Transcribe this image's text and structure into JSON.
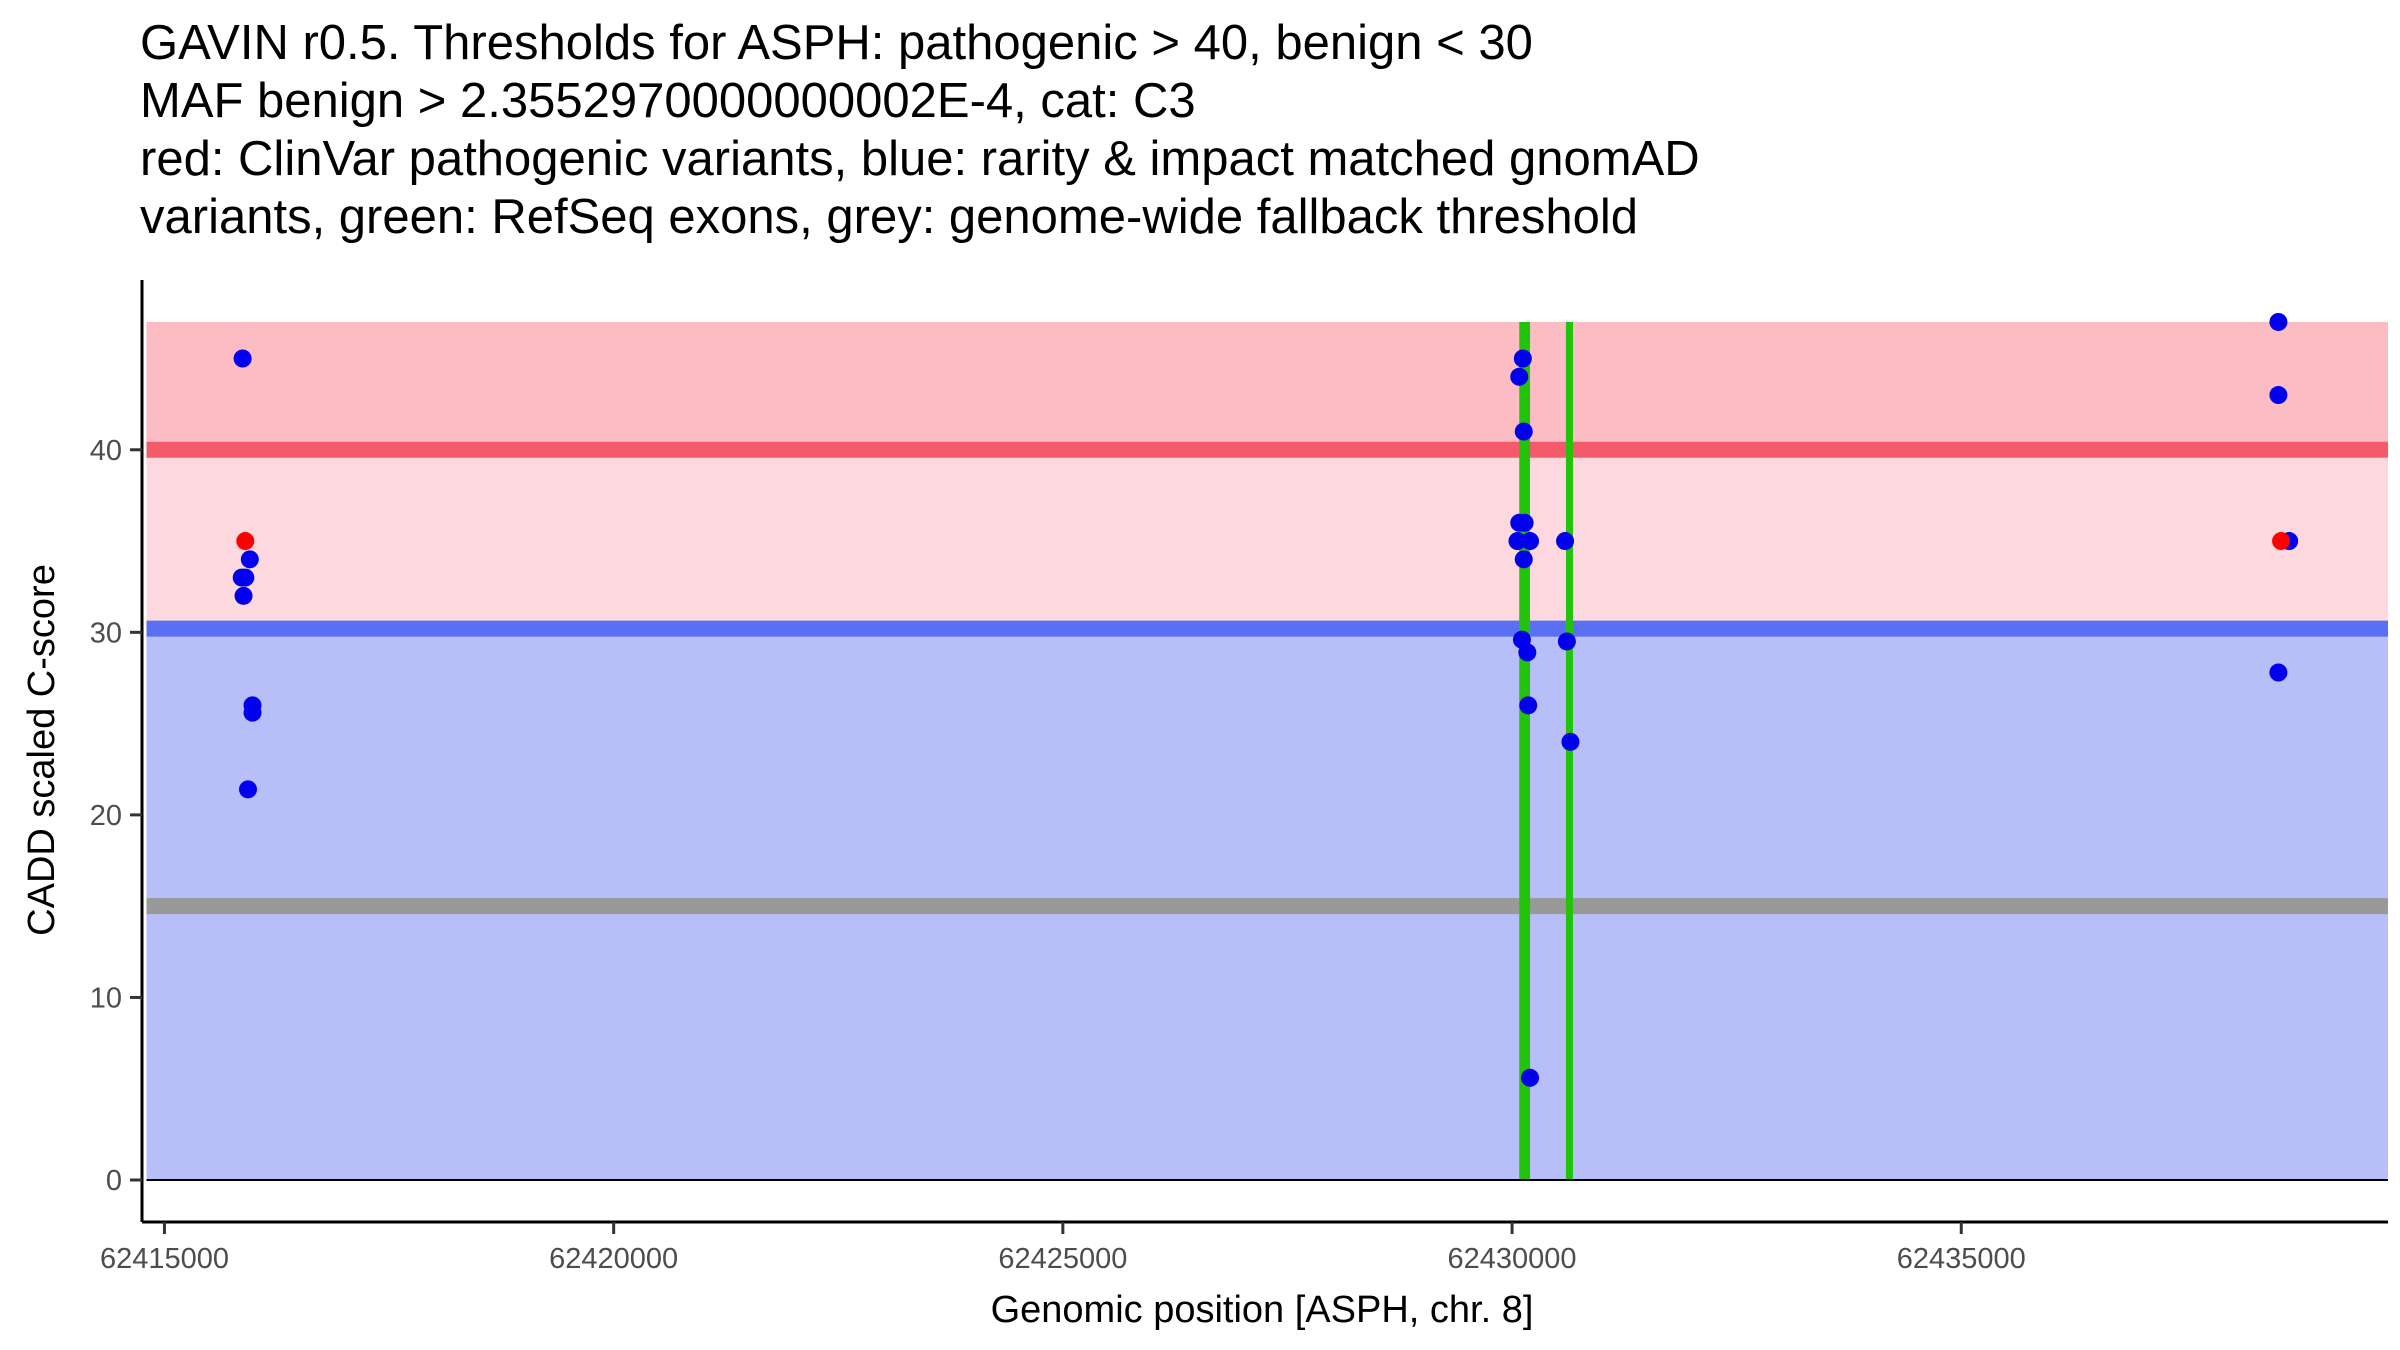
{
  "title_lines": [
    "GAVIN r0.5. Thresholds for ASPH: pathogenic > 40, benign < 30",
    "MAF benign > 2.3552970000000002E-4, cat: C3",
    "red: ClinVar pathogenic variants, blue: rarity & impact matched gnomAD",
    "variants, green: RefSeq exons, grey: genome-wide fallback threshold"
  ],
  "chart_data": {
    "type": "scatter",
    "xlabel": "Genomic position [ASPH, chr. 8]",
    "ylabel": "CADD scaled C-score",
    "xlim": [
      62414750,
      62439750
    ],
    "ylim": [
      -2.3,
      49.3
    ],
    "x_ticks": [
      62415000,
      62420000,
      62425000,
      62430000,
      62435000
    ],
    "y_ticks": [
      0,
      10,
      20,
      30,
      40
    ],
    "colors": {
      "pathogenic_region": "#fcbcc4",
      "vus_region": "#fdd8de",
      "benign_region": "#b8bef7",
      "pathogenic_line": "#f35a6a",
      "benign_line": "#5a70f3",
      "fallback_line": "#999999",
      "exon": "#22c40b",
      "pathogenic_point": "#ff0000",
      "gnomad_point": "#0000ee"
    },
    "regions": [
      {
        "name": "pathogenic",
        "y_from": 40,
        "y_to": 47,
        "x_from": 62414800,
        "x_to": 62439750
      },
      {
        "name": "vus",
        "y_from": 30,
        "y_to": 40,
        "x_from": 62414800,
        "x_to": 62439750
      },
      {
        "name": "benign",
        "y_from": 0,
        "y_to": 30,
        "x_from": 62414800,
        "x_to": 62439750
      }
    ],
    "thresholds": [
      {
        "name": "pathogenic",
        "y": 40
      },
      {
        "name": "benign",
        "y": 30.2
      },
      {
        "name": "fallback",
        "y": 15
      }
    ],
    "exons": [
      {
        "start": 62430080,
        "end": 62430200,
        "y_from": 0,
        "y_to": 47
      },
      {
        "start": 62430600,
        "end": 62430660,
        "y_from": 0,
        "y_to": 47
      }
    ],
    "series": [
      {
        "name": "gnomAD",
        "points": [
          [
            62415870,
            45
          ],
          [
            62415860,
            33
          ],
          [
            62415900,
            33
          ],
          [
            62415880,
            32
          ],
          [
            62415950,
            34
          ],
          [
            62415980,
            26
          ],
          [
            62415980,
            25.6
          ],
          [
            62415930,
            21.4
          ],
          [
            62430120,
            45
          ],
          [
            62430080,
            44
          ],
          [
            62430130,
            41
          ],
          [
            62430080,
            36
          ],
          [
            62430140,
            36
          ],
          [
            62430060,
            35
          ],
          [
            62430200,
            35
          ],
          [
            62430130,
            34
          ],
          [
            62430110,
            29.6
          ],
          [
            62430170,
            28.9
          ],
          [
            62430180,
            26
          ],
          [
            62430200,
            5.6
          ],
          [
            62430590,
            35
          ],
          [
            62430610,
            29.5
          ],
          [
            62430650,
            24
          ],
          [
            62438530,
            47
          ],
          [
            62438530,
            43
          ],
          [
            62438650,
            35
          ],
          [
            62438530,
            27.8
          ]
        ]
      },
      {
        "name": "ClinVar pathogenic",
        "points": [
          [
            62415900,
            35
          ],
          [
            62438560,
            35
          ]
        ]
      }
    ]
  }
}
